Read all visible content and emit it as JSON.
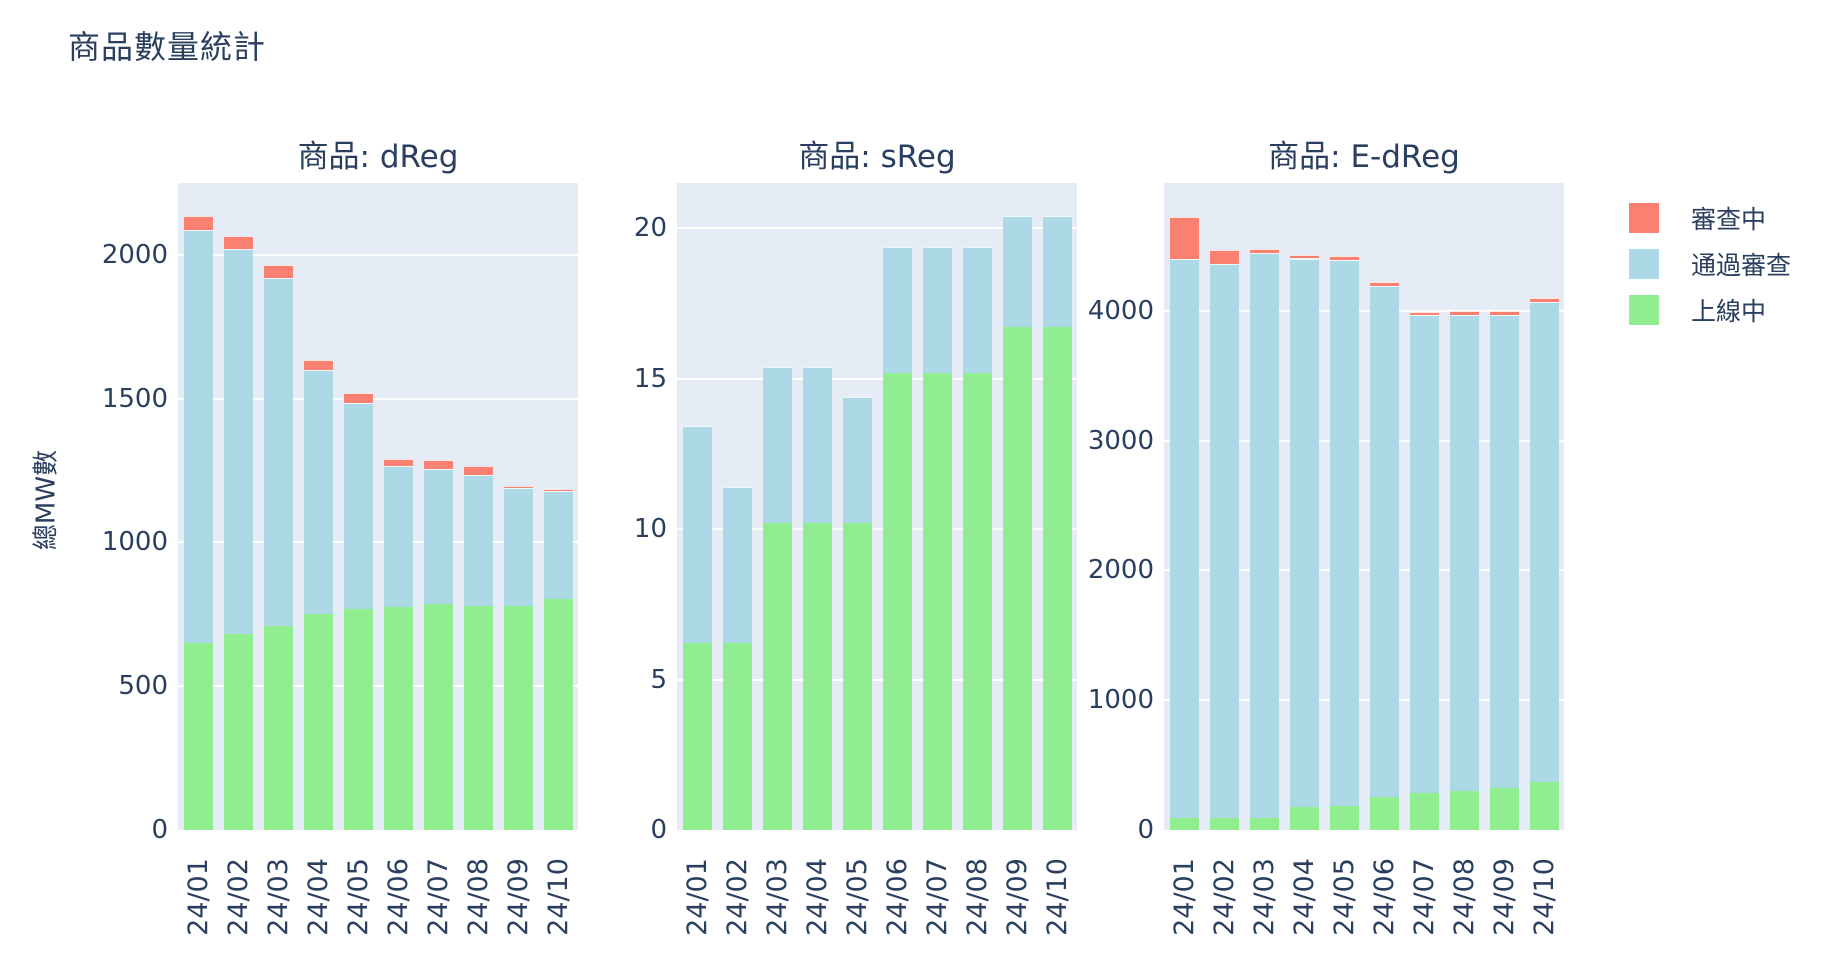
{
  "title": "商品數量統計",
  "y_axis_label": "總MW數",
  "colors": {
    "reviewing": "#FA8072",
    "approved": "#ADD8E6",
    "online": "#90EE90",
    "text": "#2a3f5f",
    "plot_bg": "#e5ecf6",
    "grid": "#ffffff"
  },
  "legend": {
    "items": [
      {
        "label": "審查中",
        "color": "#FA8072"
      },
      {
        "label": "通過審查",
        "color": "#ADD8E6"
      },
      {
        "label": "上線中",
        "color": "#90EE90"
      }
    ]
  },
  "chart_data": [
    {
      "type": "bar",
      "stacked": true,
      "title": "商品: dReg",
      "categories": [
        "24/01",
        "24/02",
        "24/03",
        "24/04",
        "24/05",
        "24/06",
        "24/07",
        "24/08",
        "24/09",
        "24/10"
      ],
      "series": [
        {
          "name": "上線中",
          "color": "#90EE90",
          "values": [
            650,
            680,
            710,
            750,
            770,
            775,
            785,
            780,
            780,
            805
          ]
        },
        {
          "name": "通過審查",
          "color": "#ADD8E6",
          "values": [
            1435,
            1340,
            1210,
            850,
            715,
            490,
            470,
            455,
            410,
            375
          ]
        },
        {
          "name": "審查中",
          "color": "#FA8072",
          "values": [
            50,
            45,
            45,
            35,
            35,
            25,
            30,
            30,
            8,
            6
          ]
        }
      ],
      "totals": [
        2135,
        2065,
        1965,
        1635,
        1520,
        1290,
        1285,
        1265,
        1198,
        1186
      ],
      "xlabel": "",
      "ylabel": "總MW數",
      "ylim": [
        0,
        2250
      ],
      "yticks": [
        0,
        500,
        1000,
        1500,
        2000
      ],
      "grid": true,
      "legend_position": "right"
    },
    {
      "type": "bar",
      "stacked": true,
      "title": "商品: sReg",
      "categories": [
        "24/01",
        "24/02",
        "24/03",
        "24/04",
        "24/05",
        "24/06",
        "24/07",
        "24/08",
        "24/09",
        "24/10"
      ],
      "series": [
        {
          "name": "上線中",
          "color": "#90EE90",
          "values": [
            6.2,
            6.2,
            10.2,
            10.2,
            10.2,
            15.2,
            15.2,
            15.2,
            16.7,
            16.7
          ]
        },
        {
          "name": "通過審查",
          "color": "#ADD8E6",
          "values": [
            7.2,
            5.2,
            5.2,
            5.2,
            4.2,
            4.2,
            4.2,
            4.2,
            3.7,
            3.7
          ]
        },
        {
          "name": "審查中",
          "color": "#FA8072",
          "values": [
            0,
            0,
            0,
            0,
            0,
            0,
            0,
            0,
            0,
            0
          ]
        }
      ],
      "totals": [
        13.4,
        11.4,
        15.4,
        15.4,
        14.4,
        19.4,
        19.4,
        19.4,
        20.4,
        20.4
      ],
      "xlabel": "",
      "ylabel": "總MW數",
      "ylim": [
        0,
        21.5
      ],
      "yticks": [
        0,
        5,
        10,
        15,
        20
      ],
      "grid": true,
      "legend_position": "right"
    },
    {
      "type": "bar",
      "stacked": true,
      "title": "商品: E-dReg",
      "categories": [
        "24/01",
        "24/02",
        "24/03",
        "24/04",
        "24/05",
        "24/06",
        "24/07",
        "24/08",
        "24/09",
        "24/10"
      ],
      "series": [
        {
          "name": "上線中",
          "color": "#90EE90",
          "values": [
            90,
            95,
            95,
            180,
            185,
            255,
            285,
            300,
            325,
            370
          ]
        },
        {
          "name": "通過審查",
          "color": "#ADD8E6",
          "values": [
            4310,
            4265,
            4350,
            4225,
            4205,
            3940,
            3685,
            3670,
            3645,
            3700
          ]
        },
        {
          "name": "審查中",
          "color": "#FA8072",
          "values": [
            325,
            105,
            30,
            25,
            30,
            30,
            25,
            30,
            30,
            30
          ]
        }
      ],
      "totals": [
        4725,
        4465,
        4475,
        4430,
        4420,
        4225,
        3995,
        4000,
        4000,
        4100
      ],
      "xlabel": "",
      "ylabel": "總MW數",
      "ylim": [
        0,
        4985
      ],
      "yticks": [
        0,
        1000,
        2000,
        3000,
        4000
      ],
      "grid": true,
      "legend_position": "right"
    }
  ]
}
